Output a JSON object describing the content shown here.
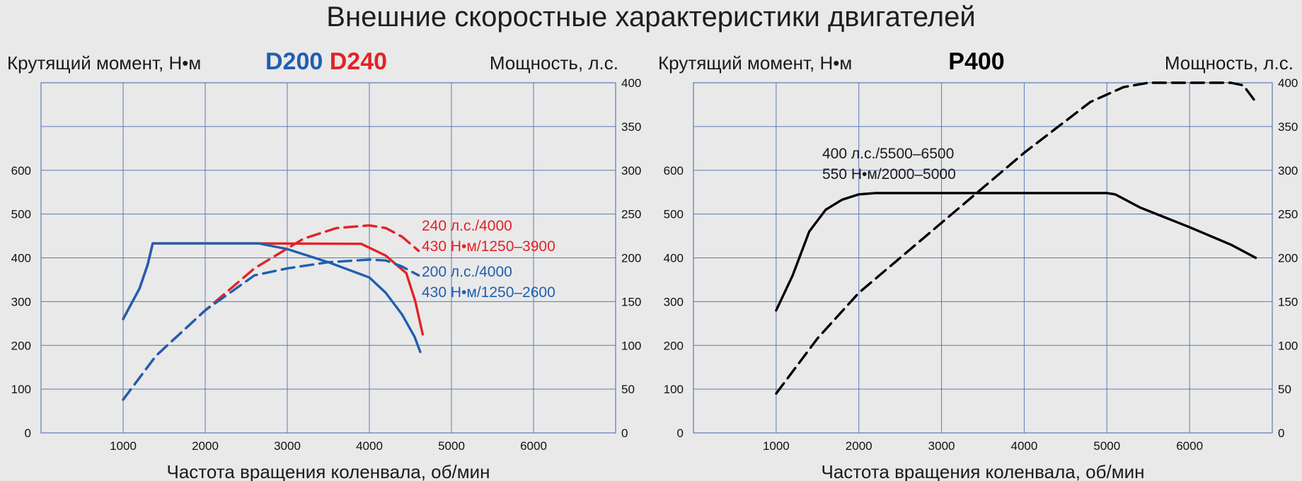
{
  "title": "Внешние скоростные характеристики двигателей",
  "colors": {
    "d200": "#1f5fb0",
    "d240": "#e32227",
    "p400": "#000000",
    "grid": "#5a7ab8",
    "background": "#e9e9e9"
  },
  "chart_data": [
    {
      "type": "line",
      "models": [
        {
          "label": "D200",
          "color": "#1f5fb0"
        },
        {
          "label": "D240",
          "color": "#e32227"
        }
      ],
      "ylabel": "Крутящий момент, Н•м",
      "y2label": "Мощность, л.с.",
      "xlabel": "Частота вращения коленвала, об/мин",
      "xlim": [
        0,
        7000
      ],
      "ylim": [
        0,
        800
      ],
      "y2lim": [
        0,
        400
      ],
      "x_ticks": [
        "1000",
        "2000",
        "3000",
        "4000",
        "5000",
        "6000"
      ],
      "y_ticks": [
        "0",
        "100",
        "200",
        "300",
        "400",
        "500",
        "600"
      ],
      "y2_ticks": [
        "0",
        "50",
        "100",
        "150",
        "200",
        "250",
        "300",
        "350",
        "400"
      ],
      "series": [
        {
          "color": "#e32227",
          "dashed": false,
          "axis": "torque",
          "x": [
            1000,
            1200,
            1300,
            1360,
            2600,
            3900,
            4200,
            4450,
            4560,
            4650
          ],
          "y": [
            260,
            330,
            385,
            433,
            433,
            432,
            405,
            365,
            300,
            225
          ]
        },
        {
          "color": "#1f5fb0",
          "dashed": false,
          "axis": "torque",
          "x": [
            1000,
            1200,
            1300,
            1360,
            2650,
            3000,
            3500,
            4000,
            4200,
            4400,
            4550,
            4620
          ],
          "y": [
            260,
            330,
            385,
            433,
            433,
            420,
            390,
            355,
            320,
            270,
            220,
            185
          ]
        },
        {
          "color": "#e32227",
          "dashed": true,
          "axis": "power",
          "x": [
            1000,
            1400,
            2000,
            2600,
            3200,
            3600,
            4000,
            4200,
            4400,
            4600
          ],
          "y": [
            38,
            88,
            140,
            188,
            222,
            234,
            237,
            234,
            224,
            208
          ]
        },
        {
          "color": "#1f5fb0",
          "dashed": true,
          "axis": "power",
          "x": [
            1000,
            1400,
            2000,
            2600,
            3000,
            3500,
            4000,
            4200,
            4400,
            4600
          ],
          "y": [
            38,
            88,
            140,
            180,
            188,
            195,
            198,
            197,
            190,
            180
          ]
        }
      ],
      "annotations": [
        {
          "text": "240 л.с./4000",
          "color": "#e32227"
        },
        {
          "text": "430 Н•м/1250–3900",
          "color": "#e32227"
        },
        {
          "text": "200 л.с./4000",
          "color": "#1f5fb0"
        },
        {
          "text": "430 Н•м/1250–2600",
          "color": "#1f5fb0"
        }
      ]
    },
    {
      "type": "line",
      "models": [
        {
          "label": "P400",
          "color": "#000000"
        }
      ],
      "ylabel": "Крутящий момент, Н•м",
      "y2label": "Мощность, л.с.",
      "xlabel": "Частота вращения коленвала, об/мин",
      "xlim": [
        0,
        7000
      ],
      "ylim": [
        0,
        800
      ],
      "y2lim": [
        0,
        400
      ],
      "x_ticks": [
        "1000",
        "2000",
        "3000",
        "4000",
        "5000",
        "6000"
      ],
      "y_ticks": [
        "0",
        "100",
        "200",
        "300",
        "400",
        "500",
        "600"
      ],
      "y2_ticks": [
        "0",
        "50",
        "100",
        "150",
        "200",
        "250",
        "300",
        "350",
        "400"
      ],
      "series": [
        {
          "color": "#000000",
          "dashed": false,
          "axis": "torque",
          "x": [
            1000,
            1200,
            1400,
            1600,
            1800,
            2000,
            2200,
            5000,
            5100,
            5400,
            6000,
            6500,
            6800
          ],
          "y": [
            280,
            360,
            460,
            510,
            533,
            545,
            548,
            548,
            545,
            515,
            470,
            430,
            400
          ]
        },
        {
          "color": "#000000",
          "dashed": true,
          "axis": "power",
          "x": [
            1000,
            1500,
            2000,
            3000,
            4000,
            4800,
            5200,
            5500,
            6500,
            6650,
            6800
          ],
          "y": [
            45,
            108,
            160,
            240,
            320,
            378,
            395,
            400,
            400,
            397,
            378
          ]
        }
      ],
      "annotations": [
        {
          "text": "400 л.с./5500–6500",
          "color": "#1a1a1a"
        },
        {
          "text": "550 Н•м/2000–5000",
          "color": "#1a1a1a"
        }
      ]
    }
  ]
}
